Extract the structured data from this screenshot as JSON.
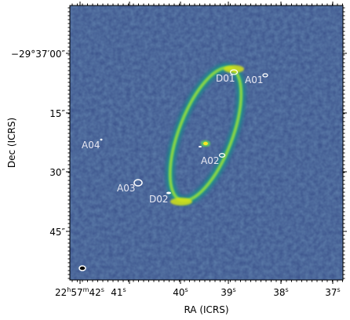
{
  "axes": {
    "xlabel": "RA (ICRS)",
    "ylabel": "Dec (ICRS)",
    "x_ticks": [
      {
        "label": "22h57m42s",
        "main": "22",
        "h": "h",
        "min": "57",
        "m": "m",
        "sec": "42",
        "s": "s"
      },
      {
        "label": "41s",
        "main": "41",
        "s": "s"
      },
      {
        "label": "40s",
        "main": "40",
        "s": "s"
      },
      {
        "label": "39s",
        "main": "39",
        "s": "s"
      },
      {
        "label": "38s",
        "main": "38",
        "s": "s"
      },
      {
        "label": "37s",
        "main": "37",
        "s": "s"
      }
    ],
    "y_ticks": [
      {
        "label": "-29°37'00\"",
        "text": "−29°37′00″"
      },
      {
        "label": "15\"",
        "text": "15″"
      },
      {
        "label": "30\"",
        "text": "30″"
      },
      {
        "label": "45\"",
        "text": "45″"
      }
    ]
  },
  "labels": {
    "D01": "D01",
    "A01": "A01",
    "A02": "A02",
    "A03": "A03",
    "A04": "A04",
    "D02": "D02"
  },
  "colors": {
    "background": "#3b528b",
    "ring_outer": "#21918c",
    "ring_mid": "#5ec962",
    "ring_core": "#d8e219",
    "contour": "#ffffff",
    "label": "#e8e8f2"
  }
}
